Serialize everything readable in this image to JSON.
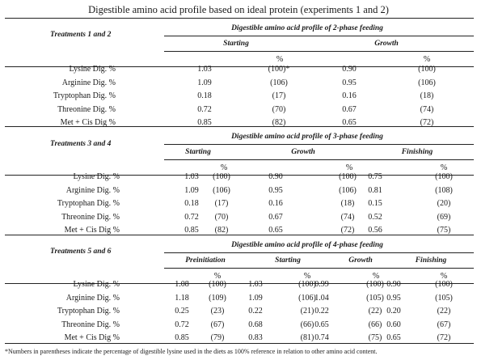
{
  "title": "Digestible amino acid profile based on ideal protein (experiments 1 and 2)",
  "sections": [
    {
      "treatment_label": "Treatments 1 and 2",
      "profile_label": "Digestible amino acid profile of 2-phase feeding",
      "phases": [
        "Starting",
        "Growth"
      ],
      "pct_symbol": "%",
      "rows": [
        {
          "label": "Lysine Dig. %",
          "values": [
            "1.03",
            "(100)*",
            "0.90",
            "(100)"
          ]
        },
        {
          "label": "Arginine Dig. %",
          "values": [
            "1.09",
            "(106)",
            "0.95",
            "(106)"
          ]
        },
        {
          "label": "Tryptophan Dig. %",
          "values": [
            "0.18",
            "(17)",
            "0.16",
            "(18)"
          ]
        },
        {
          "label": "Threonine Dig. %",
          "values": [
            "0.72",
            "(70)",
            "0.67",
            "(74)"
          ]
        },
        {
          "label": "Met + Cis Dig %",
          "values": [
            "0.85",
            "(82)",
            "0.65",
            "(72)"
          ]
        }
      ]
    },
    {
      "treatment_label": "Treatments 3 and 4",
      "profile_label": "Digestible amino acid profile of 3-phase feeding",
      "phases": [
        "Starting",
        "Growth",
        "Finishing"
      ],
      "pct_symbol": "%",
      "rows": [
        {
          "label": "Lysine Dig. %",
          "values": [
            "1.03",
            "(100)",
            "0.90",
            "(100)",
            "0.75",
            "(100)"
          ]
        },
        {
          "label": "Arginine Dig. %",
          "values": [
            "1.09",
            "(106)",
            "0.95",
            "(106)",
            "0.81",
            "(108)"
          ]
        },
        {
          "label": "Tryptophan Dig. %",
          "values": [
            "0.18",
            "(17)",
            "0.16",
            "(18)",
            "0.15",
            "(20)"
          ]
        },
        {
          "label": "Threonine Dig. %",
          "values": [
            "0.72",
            "(70)",
            "0.67",
            "(74)",
            "0.52",
            "(69)"
          ]
        },
        {
          "label": "Met + Cis Dig %",
          "values": [
            "0.85",
            "(82)",
            "0.65",
            "(72)",
            "0.56",
            "(75)"
          ]
        }
      ]
    },
    {
      "treatment_label": "Treatments 5 and 6",
      "profile_label": "Digestible amino acid profile of 4-phase feeding",
      "phases": [
        "Preinitiation",
        "Starting",
        "Growth",
        "Finishing"
      ],
      "pct_symbol": "%",
      "rows": [
        {
          "label": "Lysine Dig. %",
          "values": [
            "1.08",
            "(100)",
            "1.03",
            "(100)",
            "0.99",
            "(100)",
            "0.90",
            "(100)"
          ]
        },
        {
          "label": "Arginine Dig. %",
          "values": [
            "1.18",
            "(109)",
            "1.09",
            "(106)",
            "1.04",
            "(105)",
            "0.95",
            "(105)"
          ]
        },
        {
          "label": "Tryptophan Dig. %",
          "values": [
            "0.25",
            "(23)",
            "0.22",
            "(21)",
            "0.22",
            "(22)",
            "0.20",
            "(22)"
          ]
        },
        {
          "label": "Threonine Dig. %",
          "values": [
            "0.72",
            "(67)",
            "0.68",
            "(66)",
            "0.65",
            "(66)",
            "0.60",
            "(67)"
          ]
        },
        {
          "label": "Met + Cis Dig %",
          "values": [
            "0.85",
            "(79)",
            "0.83",
            "(81)",
            "0.74",
            "(75)",
            "0.65",
            "(72)"
          ]
        }
      ]
    }
  ],
  "footnote": "*Numbers in parentheses indicate the percentage of digestible lysine used in the diets as 100% reference in relation to other amino acid content."
}
